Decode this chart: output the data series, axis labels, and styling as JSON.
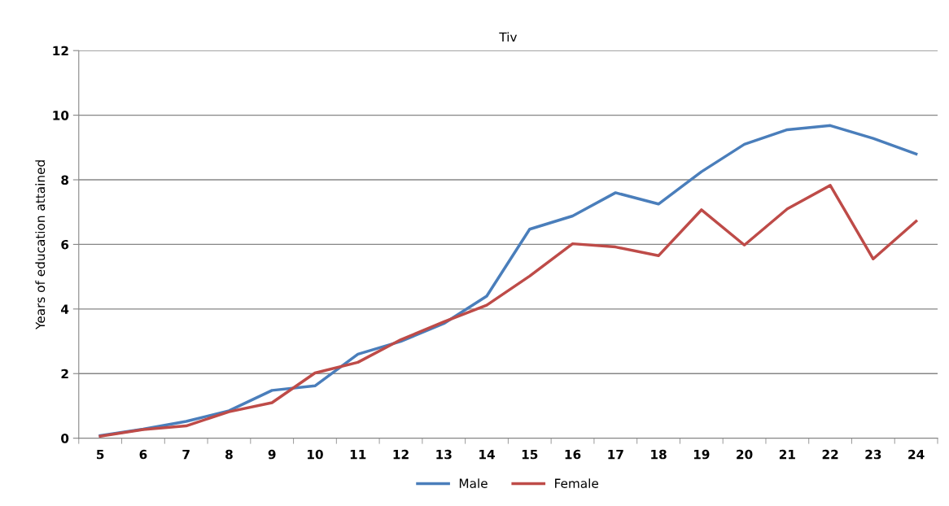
{
  "chart_data": {
    "type": "line",
    "title": "Tiv",
    "ylabel": "Years of education attained",
    "categories": [
      "5",
      "6",
      "7",
      "8",
      "9",
      "10",
      "11",
      "12",
      "13",
      "14",
      "15",
      "16",
      "17",
      "18",
      "19",
      "20",
      "21",
      "22",
      "23",
      "24"
    ],
    "series": [
      {
        "name": "Male",
        "color": "#4a7ebb",
        "values": [
          0.08,
          0.28,
          0.52,
          0.85,
          1.48,
          1.62,
          2.6,
          3.0,
          3.55,
          4.4,
          6.47,
          6.88,
          7.6,
          7.25,
          8.25,
          9.1,
          9.55,
          9.68,
          9.28,
          8.8
        ]
      },
      {
        "name": "Female",
        "color": "#be4b48",
        "values": [
          0.06,
          0.27,
          0.38,
          0.82,
          1.1,
          2.02,
          2.35,
          3.05,
          3.6,
          4.12,
          5.02,
          6.02,
          5.92,
          5.65,
          7.07,
          5.98,
          7.1,
          7.83,
          5.55,
          6.72
        ]
      }
    ],
    "ylim": [
      0,
      12
    ],
    "yticks": [
      0,
      2,
      4,
      6,
      8,
      10,
      12
    ],
    "grid": "y",
    "legend": "bottom",
    "marker": "none",
    "line_style": "solid"
  }
}
